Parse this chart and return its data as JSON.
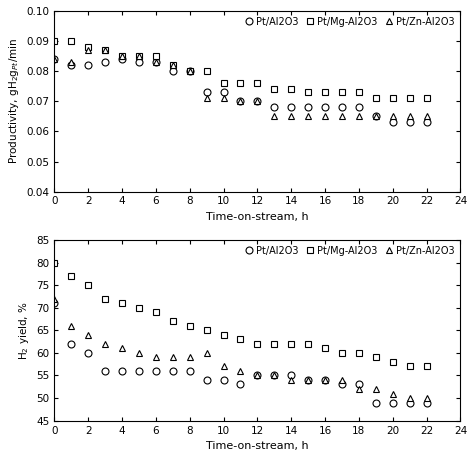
{
  "top_plot": {
    "Pt/Al2O3": {
      "x": [
        0,
        1,
        2,
        3,
        4,
        5,
        6,
        7,
        8,
        9,
        10,
        11,
        12,
        13,
        14,
        15,
        16,
        17,
        18,
        19,
        20,
        21,
        22
      ],
      "y": [
        0.084,
        0.082,
        0.082,
        0.083,
        0.084,
        0.083,
        0.083,
        0.08,
        0.08,
        0.073,
        0.073,
        0.07,
        0.07,
        0.068,
        0.068,
        0.068,
        0.068,
        0.068,
        0.068,
        0.065,
        0.063,
        0.063,
        0.063
      ]
    },
    "Pt/Mg-Al2O3": {
      "x": [
        0,
        1,
        2,
        3,
        4,
        5,
        6,
        7,
        8,
        9,
        10,
        11,
        12,
        13,
        14,
        15,
        16,
        17,
        18,
        19,
        20,
        21,
        22
      ],
      "y": [
        0.09,
        0.09,
        0.088,
        0.087,
        0.085,
        0.085,
        0.085,
        0.082,
        0.08,
        0.08,
        0.076,
        0.076,
        0.076,
        0.074,
        0.074,
        0.073,
        0.073,
        0.073,
        0.073,
        0.071,
        0.071,
        0.071,
        0.071
      ]
    },
    "Pt/Zn-Al2O3": {
      "x": [
        0,
        1,
        2,
        3,
        4,
        5,
        6,
        7,
        8,
        9,
        10,
        11,
        12,
        13,
        14,
        15,
        16,
        17,
        18,
        19,
        20,
        21,
        22
      ],
      "y": [
        0.084,
        0.083,
        0.087,
        0.087,
        0.085,
        0.085,
        0.083,
        0.082,
        0.08,
        0.071,
        0.071,
        0.07,
        0.07,
        0.065,
        0.065,
        0.065,
        0.065,
        0.065,
        0.065,
        0.065,
        0.065,
        0.065,
        0.065
      ]
    },
    "ylabel": "Productivity, gH$_2$g$_{Pt}$/min",
    "ylim": [
      0.04,
      0.1
    ],
    "yticks": [
      0.04,
      0.05,
      0.06,
      0.07,
      0.08,
      0.09,
      0.1
    ]
  },
  "bottom_plot": {
    "Pt/Al2O3": {
      "x": [
        0,
        1,
        2,
        3,
        4,
        5,
        6,
        7,
        8,
        9,
        10,
        11,
        12,
        13,
        14,
        15,
        16,
        17,
        18,
        19,
        20,
        21,
        22
      ],
      "y": [
        71,
        62,
        60,
        56,
        56,
        56,
        56,
        56,
        56,
        54,
        54,
        53,
        55,
        55,
        55,
        54,
        54,
        53,
        53,
        49,
        49,
        49,
        49
      ]
    },
    "Pt/Mg-Al2O3": {
      "x": [
        0,
        1,
        2,
        3,
        4,
        5,
        6,
        7,
        8,
        9,
        10,
        11,
        12,
        13,
        14,
        15,
        16,
        17,
        18,
        19,
        20,
        21,
        22
      ],
      "y": [
        80,
        77,
        75,
        72,
        71,
        70,
        69,
        67,
        66,
        65,
        64,
        63,
        62,
        62,
        62,
        62,
        61,
        60,
        60,
        59,
        58,
        57,
        57
      ]
    },
    "Pt/Zn-Al2O3": {
      "x": [
        0,
        1,
        2,
        3,
        4,
        5,
        6,
        7,
        8,
        9,
        10,
        11,
        12,
        13,
        14,
        15,
        16,
        17,
        18,
        19,
        20,
        21,
        22
      ],
      "y": [
        72,
        66,
        64,
        62,
        61,
        60,
        59,
        59,
        59,
        60,
        57,
        56,
        55,
        55,
        54,
        54,
        54,
        54,
        52,
        52,
        51,
        50,
        50
      ]
    },
    "ylabel": "H$_2$ yield, %",
    "ylim": [
      45,
      85
    ],
    "yticks": [
      45,
      50,
      55,
      60,
      65,
      70,
      75,
      80,
      85
    ]
  },
  "xlabel": "Time-on-stream, h",
  "xlim": [
    0,
    24
  ],
  "xticks": [
    0,
    2,
    4,
    6,
    8,
    10,
    12,
    14,
    16,
    18,
    20,
    22,
    24
  ],
  "series": [
    "Pt/Al2O3",
    "Pt/Mg-Al2O3",
    "Pt/Zn-Al2O3"
  ],
  "markers": [
    "o",
    "s",
    "^"
  ],
  "legend_labels": [
    "Pt/Al2O3",
    "Pt/Mg-Al2O3",
    "Pt/Zn-Al2O3"
  ],
  "color": "black",
  "markersize": 5,
  "markeredgewidth": 0.8
}
